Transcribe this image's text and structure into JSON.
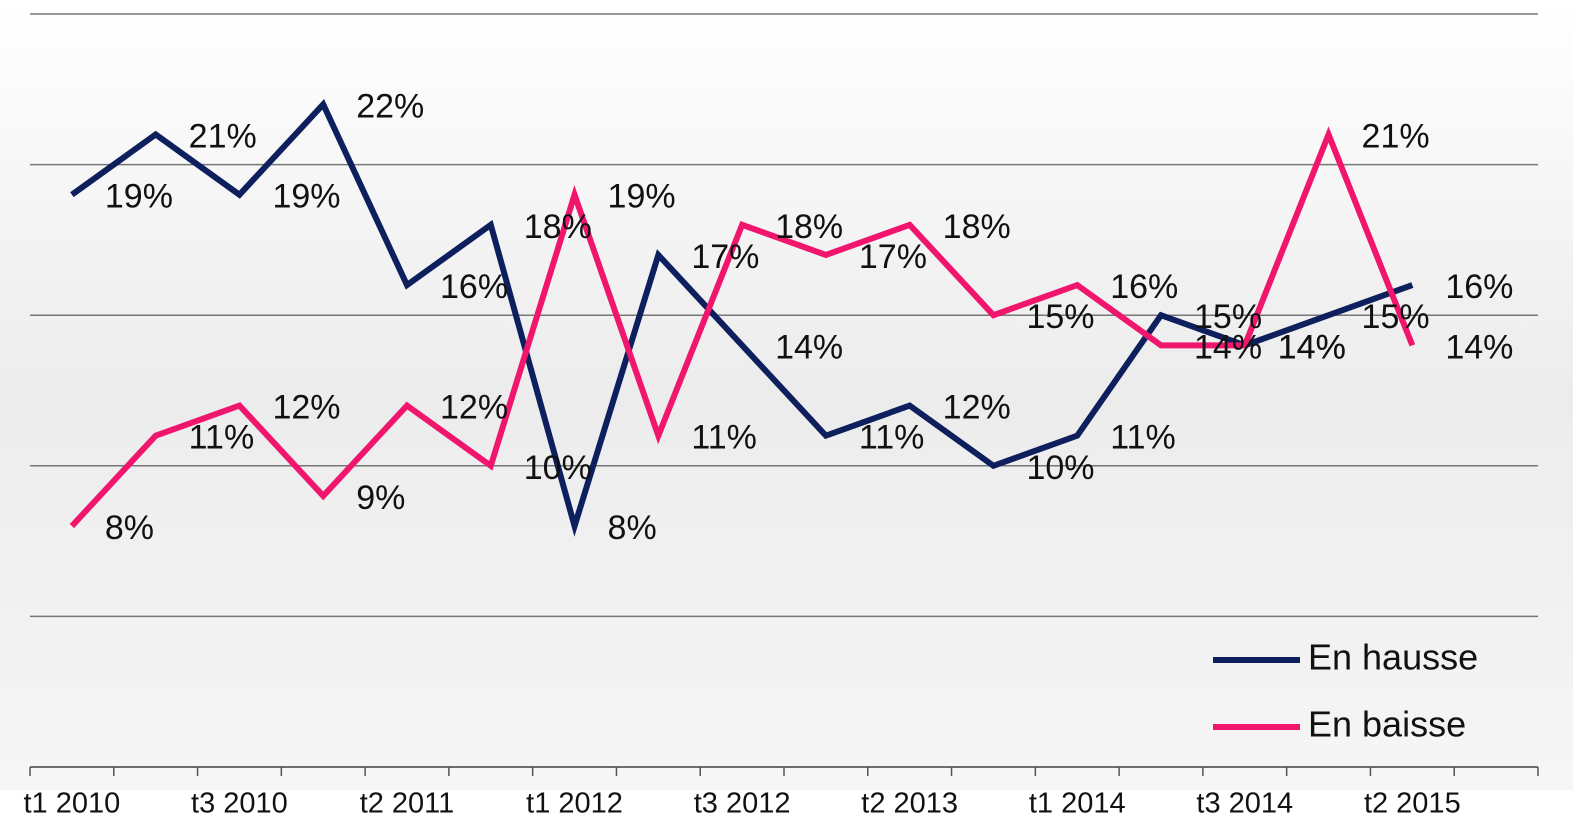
{
  "chart_data": {
    "type": "line",
    "categories": [
      "t1 2010",
      null,
      "t3 2010",
      null,
      "t2 2011",
      null,
      "t1 2012",
      null,
      "t3 2012",
      null,
      "t2 2013",
      null,
      "t1 2014",
      null,
      "t3 2014",
      null,
      "t2 2015"
    ],
    "series": [
      {
        "name": "En hausse",
        "color": "#0d1f5c",
        "values": [
          19,
          21,
          19,
          22,
          16,
          18,
          8,
          17,
          14,
          11,
          12,
          10,
          11,
          15,
          14,
          15,
          16
        ],
        "value_labels": [
          "19%",
          "21%",
          "19%",
          "22%",
          "16%",
          "18%",
          "8%",
          "17%",
          "14%",
          "11%",
          "12%",
          "10%",
          "11%",
          "15%",
          "14%",
          "15%",
          "16%"
        ]
      },
      {
        "name": "En baisse",
        "color": "#f0166e",
        "values": [
          8,
          11,
          12,
          9,
          12,
          10,
          19,
          11,
          18,
          17,
          18,
          15,
          16,
          14,
          14,
          21,
          14
        ],
        "value_labels": [
          "8%",
          "11%",
          "12%",
          "9%",
          "12%",
          "10%",
          "19%",
          "11%",
          "18%",
          "17%",
          "18%",
          "15%",
          "16%",
          "14%",
          "14%",
          "21%",
          "14%"
        ]
      }
    ],
    "ylim": [
      0,
      25
    ],
    "yticks": [
      0,
      5,
      10,
      15,
      20,
      25
    ],
    "grid": true,
    "legend": "lower right"
  }
}
